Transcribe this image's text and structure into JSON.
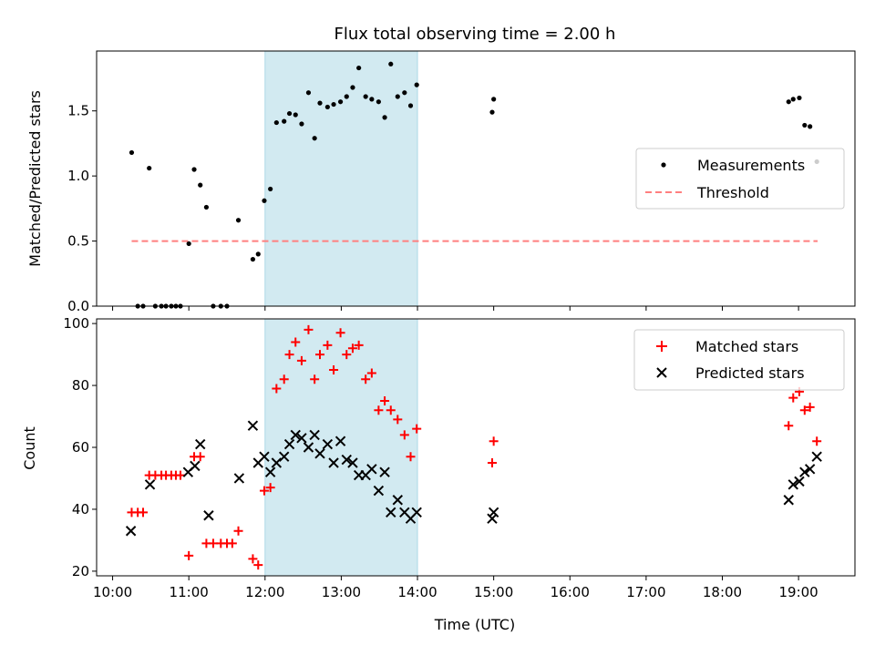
{
  "figure": {
    "title": "Flux total observing time = 2.00 h",
    "xlabel": "Time (UTC)"
  },
  "colors": {
    "measurement": "#000000",
    "threshold": "#ff7f7f",
    "band": "#add8e6",
    "matched": "#ff0000",
    "predicted": "#000000"
  },
  "chart_data": [
    {
      "type": "scatter",
      "ylabel": "Matched/Predicted stars",
      "xlim": [
        9.79,
        19.74
      ],
      "ylim": [
        0,
        1.96
      ],
      "yticks": [
        0.0,
        0.5,
        1.0,
        1.5
      ],
      "ytick_labels": [
        "0.0",
        "0.5",
        "1.0",
        "1.5"
      ],
      "shaded_span": [
        12.0,
        14.0
      ],
      "legend": {
        "placement": "center-right",
        "entries": [
          "Measurements",
          "Threshold"
        ]
      },
      "threshold": {
        "name": "Threshold",
        "y": 0.5,
        "x": [
          10.25,
          19.25
        ]
      },
      "series": [
        {
          "name": "Measurements",
          "x": [
            10.25,
            10.33,
            10.4,
            10.48,
            10.56,
            10.64,
            10.7,
            10.77,
            10.83,
            10.89,
            11.0,
            11.07,
            11.15,
            11.23,
            11.32,
            11.42,
            11.5,
            11.65,
            11.84,
            11.91,
            11.99,
            12.07,
            12.15,
            12.25,
            12.32,
            12.4,
            12.48,
            12.57,
            12.65,
            12.72,
            12.82,
            12.9,
            12.99,
            13.07,
            13.15,
            13.23,
            13.32,
            13.4,
            13.49,
            13.57,
            13.65,
            13.74,
            13.83,
            13.91,
            13.99,
            14.98,
            15.0,
            18.87,
            18.93,
            19.01,
            19.08,
            19.15,
            19.24
          ],
          "y": [
            1.18,
            0.0,
            0.0,
            1.06,
            0.0,
            0.0,
            0.0,
            0.0,
            0.0,
            0.0,
            0.48,
            1.05,
            0.93,
            0.76,
            0.0,
            0.0,
            0.0,
            0.66,
            0.36,
            0.4,
            0.81,
            0.9,
            1.41,
            1.42,
            1.48,
            1.47,
            1.4,
            1.64,
            1.29,
            1.56,
            1.53,
            1.55,
            1.57,
            1.61,
            1.68,
            1.83,
            1.61,
            1.59,
            1.57,
            1.45,
            1.86,
            1.61,
            1.64,
            1.54,
            1.7,
            1.49,
            1.59,
            1.57,
            1.59,
            1.6,
            1.39,
            1.38,
            1.11
          ]
        }
      ]
    },
    {
      "type": "scatter",
      "ylabel": "Count",
      "xlim": [
        9.79,
        19.74
      ],
      "ylim": [
        18.5,
        101.5
      ],
      "yticks": [
        20,
        40,
        60,
        80,
        100
      ],
      "ytick_labels": [
        "20",
        "40",
        "60",
        "80",
        "100"
      ],
      "xticks": [
        10,
        11,
        12,
        13,
        14,
        15,
        16,
        17,
        18,
        19
      ],
      "xtick_labels": [
        "10:00",
        "11:00",
        "12:00",
        "13:00",
        "14:00",
        "15:00",
        "16:00",
        "17:00",
        "18:00",
        "19:00"
      ],
      "shaded_span": [
        12.0,
        14.0
      ],
      "legend": {
        "placement": "top-right",
        "entries": [
          "Matched stars",
          "Predicted stars"
        ]
      },
      "series": [
        {
          "name": "Matched stars",
          "marker": "plus",
          "x": [
            10.25,
            10.33,
            10.4,
            10.48,
            10.56,
            10.64,
            10.7,
            10.77,
            10.83,
            10.89,
            11.0,
            11.07,
            11.15,
            11.23,
            11.32,
            11.42,
            11.5,
            11.57,
            11.65,
            11.84,
            11.91,
            11.99,
            12.07,
            12.15,
            12.25,
            12.32,
            12.4,
            12.48,
            12.57,
            12.65,
            12.72,
            12.82,
            12.9,
            12.99,
            13.07,
            13.15,
            13.23,
            13.32,
            13.4,
            13.49,
            13.57,
            13.65,
            13.74,
            13.83,
            13.91,
            13.99,
            14.98,
            15.0,
            18.87,
            18.93,
            19.01,
            19.08,
            19.15,
            19.24
          ],
          "y": [
            39,
            39,
            39,
            51,
            51,
            51,
            51,
            51,
            51,
            51,
            25,
            57,
            57,
            29,
            29,
            29,
            29,
            29,
            33,
            24,
            22,
            46,
            47,
            79,
            82,
            90,
            94,
            88,
            98,
            82,
            90,
            93,
            85,
            97,
            90,
            92,
            93,
            82,
            84,
            72,
            75,
            72,
            69,
            64,
            57,
            66,
            55,
            62,
            67,
            76,
            78,
            72,
            73,
            62
          ]
        },
        {
          "name": "Predicted stars",
          "marker": "x",
          "x": [
            10.24,
            10.49,
            10.99,
            11.08,
            11.15,
            11.26,
            11.66,
            11.84,
            11.91,
            11.99,
            12.07,
            12.15,
            12.25,
            12.32,
            12.4,
            12.48,
            12.57,
            12.65,
            12.72,
            12.82,
            12.9,
            12.99,
            13.07,
            13.15,
            13.23,
            13.32,
            13.4,
            13.49,
            13.57,
            13.65,
            13.74,
            13.83,
            13.91,
            13.99,
            14.98,
            15.0,
            18.87,
            18.93,
            19.01,
            19.08,
            19.15,
            19.24
          ],
          "y": [
            33,
            48,
            52,
            54,
            61,
            38,
            50,
            67,
            55,
            57,
            52,
            55,
            57,
            61,
            64,
            63,
            60,
            64,
            58,
            61,
            55,
            62,
            56,
            55,
            51,
            51,
            53,
            46,
            52,
            39,
            43,
            39,
            37,
            39,
            37,
            39,
            43,
            48,
            49,
            52,
            53,
            57
          ]
        }
      ]
    }
  ]
}
